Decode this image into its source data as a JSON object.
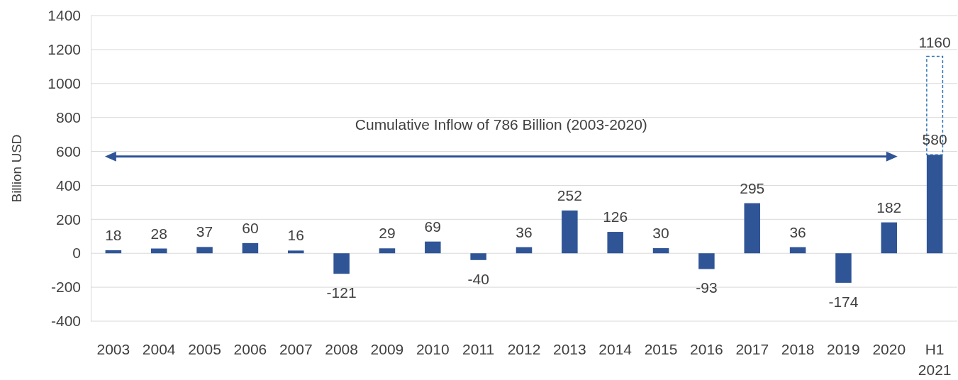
{
  "chart_data": {
    "type": "bar",
    "ylabel": "Billion USD",
    "categories": [
      "2003",
      "2004",
      "2005",
      "2006",
      "2007",
      "2008",
      "2009",
      "2010",
      "2011",
      "2012",
      "2013",
      "2014",
      "2015",
      "2016",
      "2017",
      "2018",
      "2019",
      "2020",
      "H1\n2021"
    ],
    "stacked": true,
    "series": [
      {
        "color": "#2f5597",
        "values": [
          18,
          28,
          37,
          60,
          16,
          -121,
          29,
          69,
          -40,
          36,
          252,
          126,
          30,
          -93,
          295,
          36,
          -174,
          182,
          580
        ],
        "value_labels": [
          "18",
          "28",
          "37",
          "60",
          "16",
          "-121",
          "29",
          "69",
          "-40",
          "36",
          "252",
          "126",
          "30",
          "-93",
          "295",
          "36",
          "-174",
          "182",
          "580"
        ]
      },
      {
        "color": "#2e75b6",
        "line_style": "dashed",
        "values": [
          null,
          null,
          null,
          null,
          null,
          null,
          null,
          null,
          null,
          null,
          null,
          null,
          null,
          null,
          null,
          null,
          null,
          null,
          580
        ]
      }
    ],
    "totals": [
      null,
      null,
      null,
      null,
      null,
      null,
      null,
      null,
      null,
      null,
      null,
      null,
      null,
      null,
      null,
      null,
      null,
      null,
      "1160"
    ],
    "ylim": [
      -400,
      1400
    ],
    "yticks": [
      -400,
      -200,
      0,
      200,
      400,
      600,
      800,
      1000,
      1200,
      1400
    ],
    "grid": "y",
    "annotations": [
      "Cumulative Inflow of 786 Billion (2003-2020)"
    ]
  }
}
